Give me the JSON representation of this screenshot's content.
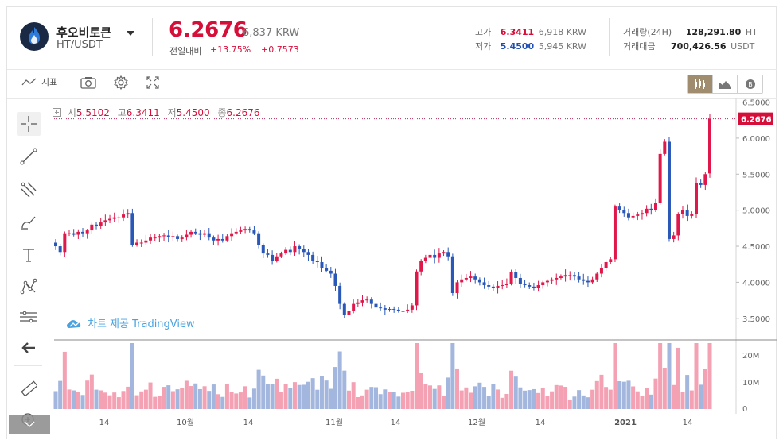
{
  "coin": {
    "name": "후오비토큰",
    "pair": "HT/USDT"
  },
  "price": {
    "usdt": "6.2676",
    "krw": "6,837 KRW",
    "change_label": "전일대비",
    "change_pct": "+13.75%",
    "change_abs": "+0.7573"
  },
  "stats": {
    "high_label": "고가",
    "high": "6.3411",
    "high_krw": "6,918 KRW",
    "low_label": "저가",
    "low": "5.4500",
    "low_krw": "5,945 KRW",
    "volume_label": "거래량(24H)",
    "volume": "128,291.80",
    "volume_unit": "HT",
    "turnover_label": "거래대금",
    "turnover": "700,426.56",
    "turnover_unit": "USDT"
  },
  "toolbar": {
    "indicator_label": "지표",
    "icons": [
      "indicator-icon",
      "camera-icon",
      "gear-icon",
      "fullscreen-icon"
    ],
    "views": [
      "candle-view-icon",
      "area-view-icon",
      "depth-view-icon"
    ]
  },
  "left_tools": [
    "crosshair-icon",
    "trendline-icon",
    "fib-icon",
    "brush-icon",
    "text-icon",
    "pattern-icon",
    "measure-icon",
    "back-arrow-icon",
    "ruler-icon",
    "zoom-in-icon"
  ],
  "ohlc": {
    "o_label": "시",
    "o": "5.5102",
    "h_label": "고",
    "h": "6.3411",
    "l_label": "저",
    "l": "5.4500",
    "c_label": "종",
    "c": "6.2676"
  },
  "watermark": "차트 제공 TradingView",
  "colors": {
    "up": "#e0174a",
    "down": "#2a58b8",
    "vol_up": "#f3a1b3",
    "vol_down": "#a3b6dd",
    "accent": "#d60e3a"
  },
  "chart_data": {
    "type": "candlestick",
    "y_ticks": [
      "6.5000",
      "6.0000",
      "5.5000",
      "5.0000",
      "4.5000",
      "4.0000",
      "3.5000"
    ],
    "vol_ticks": [
      "20M",
      "10M",
      "0"
    ],
    "x_ticks": [
      "14",
      "10월",
      "14",
      "11월",
      "14",
      "12월",
      "14",
      "2021",
      "14"
    ],
    "last_price": "6.2676",
    "ylim": [
      3.2,
      6.55
    ],
    "vol_max": 25000000,
    "closes": [
      4.5,
      4.42,
      4.68,
      4.68,
      4.66,
      4.7,
      4.68,
      4.72,
      4.8,
      4.78,
      4.83,
      4.86,
      4.88,
      4.9,
      4.9,
      4.94,
      4.96,
      4.52,
      4.55,
      4.55,
      4.58,
      4.62,
      4.62,
      4.64,
      4.65,
      4.63,
      4.64,
      4.6,
      4.62,
      4.66,
      4.7,
      4.68,
      4.66,
      4.68,
      4.62,
      4.58,
      4.6,
      4.58,
      4.64,
      4.68,
      4.7,
      4.72,
      4.74,
      4.72,
      4.68,
      4.52,
      4.4,
      4.38,
      4.3,
      4.36,
      4.4,
      4.45,
      4.42,
      4.5,
      4.46,
      4.42,
      4.38,
      4.3,
      4.28,
      4.2,
      4.16,
      4.12,
      3.95,
      3.7,
      3.55,
      3.6,
      3.7,
      3.72,
      3.75,
      3.76,
      3.7,
      3.65,
      3.64,
      3.62,
      3.63,
      3.62,
      3.6,
      3.6,
      3.62,
      3.68,
      4.15,
      4.3,
      4.34,
      4.38,
      4.34,
      4.4,
      4.42,
      4.36,
      3.85,
      4.0,
      4.04,
      4.06,
      4.08,
      4.04,
      4.0,
      3.96,
      3.94,
      3.92,
      3.95,
      3.96,
      3.98,
      4.14,
      4.06,
      3.98,
      3.96,
      3.94,
      3.92,
      3.96,
      4.0,
      4.02,
      4.04,
      4.06,
      4.08,
      4.1,
      4.1,
      4.08,
      4.04,
      4.02,
      4.0,
      4.04,
      4.12,
      4.2,
      4.28,
      4.32,
      5.05,
      5.0,
      4.96,
      4.9,
      4.92,
      4.94,
      4.96,
      5.02,
      5.0,
      5.1,
      5.78,
      5.95,
      4.6,
      4.65,
      4.95,
      5.0,
      4.92,
      4.95,
      5.38,
      5.35,
      5.5,
      6.27
    ]
  }
}
